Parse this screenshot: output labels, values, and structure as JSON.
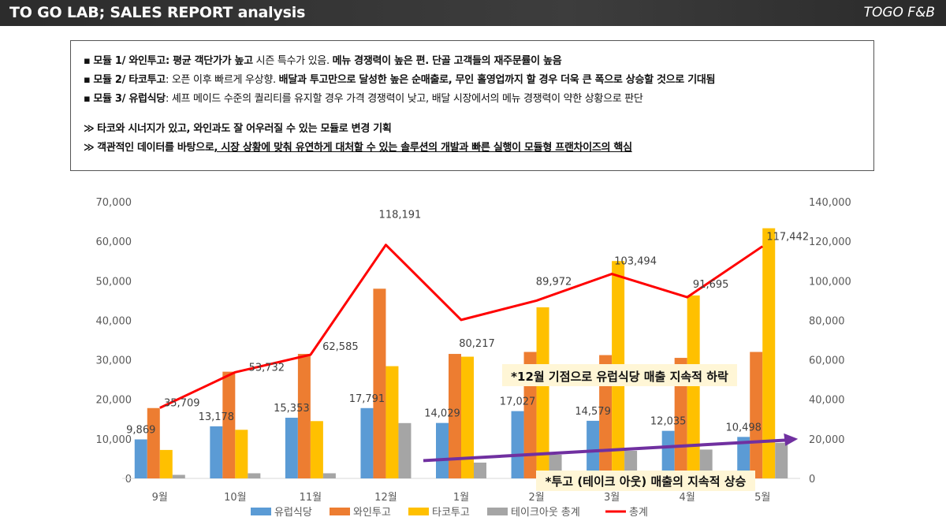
{
  "header": {
    "title": "TO GO LAB; SALES REPORT analysis",
    "brand": "TOGO F&B"
  },
  "notes": {
    "line1": {
      "bullet": "▪",
      "bold1": "모듈 1/ 와인투고: 평균 객단가가 높고",
      "normal1": " 시즌 특수가 있음. ",
      "bold2": "메뉴 경쟁력이 높은 편. 단골 고객들의 재주문률이 높음"
    },
    "line2": {
      "bullet": "▪",
      "bold1": "모듈 2/ 타코투고",
      "normal1": ": 오픈 이후 빠르게 우상향. ",
      "bold2": "배달과 투고만으로 달성한 높은 순매출로, 무인 홀영업까지 할 경우 더욱 큰 폭으로 상승할 것으로 기대됨"
    },
    "line3": {
      "bullet": "▪",
      "bold1": "모듈 3/ 유럽식당",
      "normal1": ": 셰프 메이드 수준의 퀄리티를 유지할 경우 가격 경쟁력이 낮고, 배달 시장에서의 메뉴 경쟁력이 약한 상황으로 판단"
    },
    "line4": {
      "prefix": "≫",
      "text": "타코와 시너지가 있고, 와인과도 잘 어우러질 수 있는 모듈로 변경 기획"
    },
    "line5": {
      "prefix": "≫",
      "text1": "객관적인 데이터를 바탕으로",
      "text2": ", 시장 상황에 맞춰 유연하게 대처할 수 있는 솔루션의 개발과 빠른 실행이 모듈형 프랜차이즈의 핵심"
    }
  },
  "chart_data": {
    "type": "bar",
    "categories": [
      "9월",
      "10월",
      "11월",
      "12월",
      "1월",
      "2월",
      "3월",
      "4월",
      "5월"
    ],
    "series": [
      {
        "name": "유럽식당",
        "axis": "left",
        "color": "#5b9bd5",
        "values": [
          9869,
          13178,
          15353,
          17791,
          14029,
          17027,
          14579,
          12035,
          10498
        ],
        "show_labels": true
      },
      {
        "name": "와인투고",
        "axis": "left",
        "color": "#ed7d31",
        "values": [
          17800,
          27000,
          31500,
          48000,
          31500,
          32000,
          31200,
          30500,
          32000
        ],
        "show_labels": false
      },
      {
        "name": "타코투고",
        "axis": "left",
        "color": "#ffc000",
        "values": [
          7200,
          12300,
          14500,
          28400,
          30800,
          43300,
          55000,
          46300,
          63300
        ],
        "show_labels": false
      },
      {
        "name": "테이크아웃 총계",
        "axis": "left",
        "color": "#a5a5a5",
        "values": [
          900,
          1300,
          1300,
          14000,
          4000,
          6000,
          7000,
          7300,
          9000
        ],
        "show_labels": false
      },
      {
        "name": "총계",
        "type": "line",
        "axis": "right",
        "color": "#ff0000",
        "values": [
          35709,
          53732,
          62585,
          118191,
          80217,
          89972,
          103494,
          91695,
          117442
        ],
        "show_labels": true
      }
    ],
    "y_left": {
      "min": 0,
      "max": 70000,
      "ticks": [
        "0",
        "10,000",
        "20,000",
        "30,000",
        "40,000",
        "50,000",
        "60,000",
        "70,000"
      ]
    },
    "y_right": {
      "min": 0,
      "max": 140000,
      "ticks": [
        "0",
        "20,000",
        "40,000",
        "60,000",
        "80,000",
        "100,000",
        "120,000",
        "140,000"
      ]
    },
    "bar_labels": [
      "9,869",
      "13,178",
      "15,353",
      "17,791",
      "14,029",
      "17,027",
      "14,579",
      "12,035",
      "10,498"
    ],
    "line_labels": [
      "35,709",
      "53,732",
      "62,585",
      "118,191",
      "80,217",
      "89,972",
      "103,494",
      "91,695",
      "117,442"
    ],
    "grid": false,
    "legend": "bottom",
    "annotations": [
      {
        "text": "*12월 기점으로 유럽식당 매출 지속적 하락",
        "bg": "#fff6d6"
      },
      {
        "text": "*투고 (테이크 아웃) 매출의 지속적 상승",
        "bg": "#fff6d6"
      }
    ],
    "trend_arrow": {
      "color": "#7030a0",
      "from_month": "1월",
      "to_month": "5월",
      "right_values": [
        9000,
        20000
      ]
    }
  }
}
